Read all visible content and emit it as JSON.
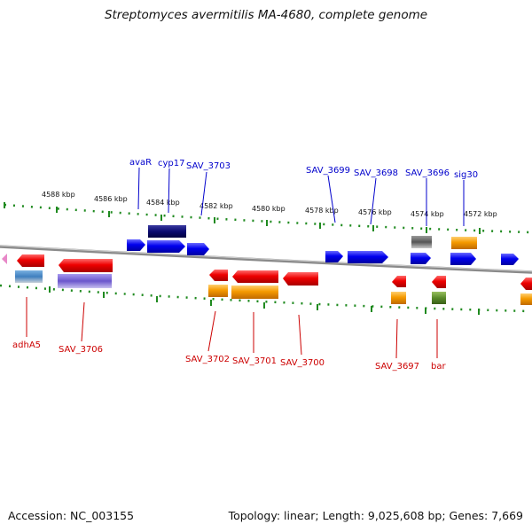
{
  "title": "Streptomyces avermitilis MA-4680, complete genome",
  "footer": {
    "accession": "Accession: NC_003155",
    "summary": "Topology: linear; Length: 9,025,608 bp; Genes: 7,669"
  },
  "colors": {
    "forward_label": "#0000cc",
    "reverse_label": "#cc0000",
    "backbone": "#8a8a8a",
    "tick": "#1f8a1f"
  },
  "scale_ticks": [
    "4588 kbp",
    "4586 kbp",
    "4584 kbp",
    "4582 kbp",
    "4580 kbp",
    "4578 kbp",
    "4576 kbp",
    "4574 kbp",
    "4572 kbp"
  ],
  "forward_genes": [
    "avaR",
    "cyp17",
    "SAV_3703",
    "SAV_3699",
    "SAV_3698",
    "SAV_3696",
    "sig30"
  ],
  "reverse_genes": [
    "adhA5",
    "SAV_3706",
    "SAV_3702",
    "SAV_3701",
    "SAV_3700",
    "SAV_3697",
    "bar"
  ]
}
